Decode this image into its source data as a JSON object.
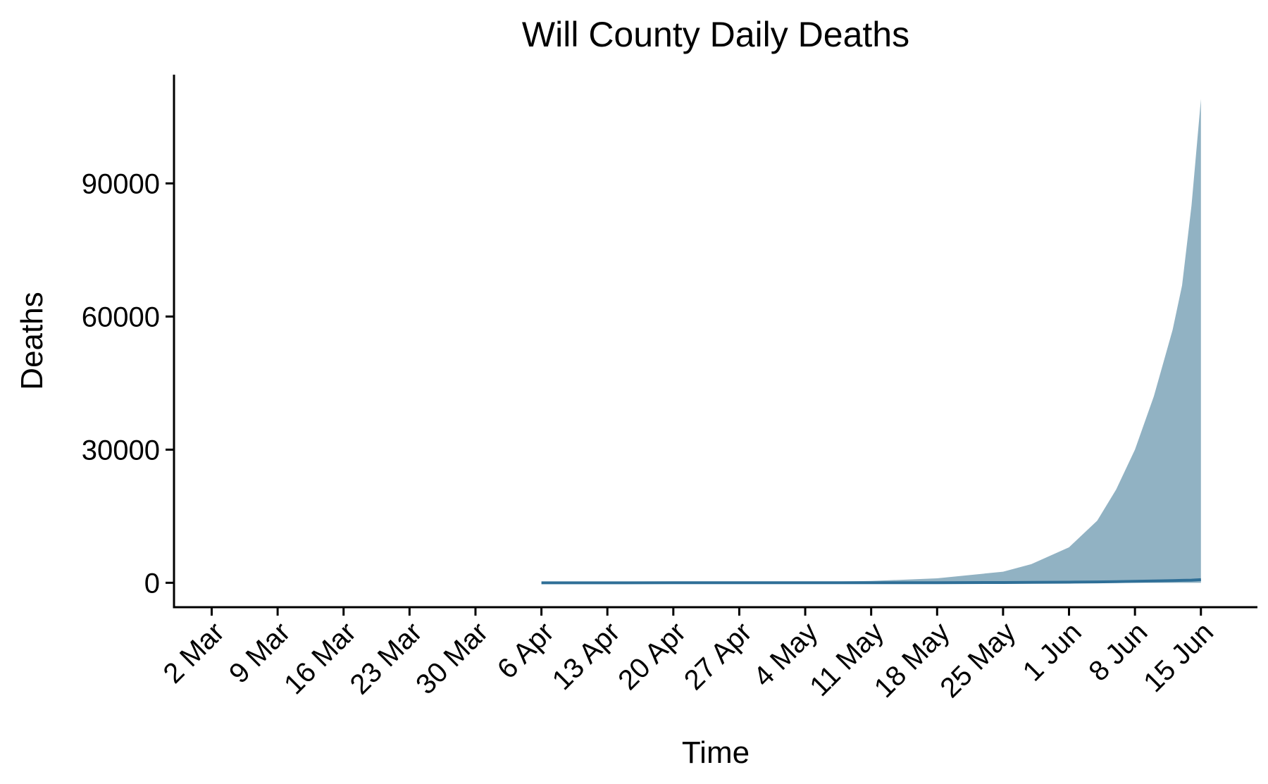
{
  "chart_data": {
    "type": "area",
    "title": "Will County Daily Deaths",
    "xlabel": "Time",
    "ylabel": "Deaths",
    "x_tick_labels": [
      "2 Mar",
      "9 Mar",
      "16 Mar",
      "23 Mar",
      "30 Mar",
      "6 Apr",
      "13 Apr",
      "20 Apr",
      "27 Apr",
      "4 May",
      "11 May",
      "18 May",
      "25 May",
      "1 Jun",
      "8 Jun",
      "15 Jun"
    ],
    "y_tick_labels": [
      "0",
      "30000",
      "60000",
      "90000"
    ],
    "y_ticks": [
      0,
      30000,
      60000,
      90000
    ],
    "xlim": [
      "2020-02-27",
      "2020-06-21"
    ],
    "ylim": [
      -5500,
      114500
    ],
    "grid": false,
    "legend": "none",
    "colors": {
      "band": "#91b2c3",
      "line": "#2f6f97"
    },
    "series": [
      {
        "x": [
          "2020-04-06",
          "2020-04-20",
          "2020-05-04",
          "2020-05-11",
          "2020-05-18",
          "2020-05-25",
          "2020-05-28",
          "2020-06-01",
          "2020-06-04",
          "2020-06-06",
          "2020-06-08",
          "2020-06-10",
          "2020-06-12",
          "2020-06-13",
          "2020-06-14",
          "2020-06-15"
        ],
        "lower": [
          0,
          0,
          0,
          0,
          0,
          0,
          0,
          0,
          0,
          0,
          0,
          0,
          0,
          0,
          0,
          0
        ],
        "upper": [
          10,
          40,
          150,
          400,
          1000,
          2500,
          4200,
          8000,
          14000,
          21000,
          30000,
          42000,
          57000,
          67000,
          85000,
          109000
        ],
        "values": [
          0,
          1,
          3,
          8,
          20,
          50,
          80,
          130,
          200,
          260,
          330,
          400,
          480,
          540,
          600,
          700
        ]
      }
    ]
  }
}
